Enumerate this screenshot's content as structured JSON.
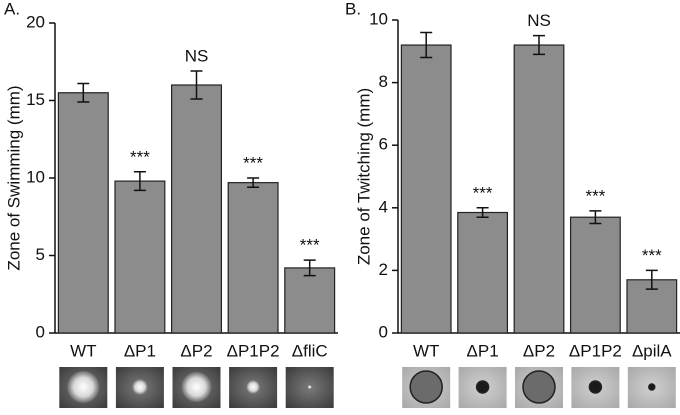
{
  "chart_data": [
    {
      "type": "bar",
      "panel_label": "A.",
      "y_label": "Zone of Swimming (mm)",
      "categories": [
        "WT",
        "ΔP1",
        "ΔP2",
        "ΔP1P2",
        "ΔfliC"
      ],
      "values": [
        15.5,
        9.8,
        16.0,
        9.7,
        4.2
      ],
      "errors": [
        0.6,
        0.6,
        0.9,
        0.3,
        0.5
      ],
      "annotations": [
        null,
        "***",
        "NS",
        "***",
        "***"
      ],
      "color": "#8c8c8c",
      "ylim": [
        0,
        20
      ],
      "yticks": [
        0,
        5,
        10,
        15,
        20
      ]
    },
    {
      "type": "bar",
      "panel_label": "B.",
      "y_label": "Zone of Twitching (mm)",
      "categories": [
        "WT",
        "ΔP1",
        "ΔP2",
        "ΔP1P2",
        "ΔpilA"
      ],
      "values": [
        9.2,
        3.85,
        9.2,
        3.7,
        1.7
      ],
      "errors": [
        0.4,
        0.15,
        0.3,
        0.2,
        0.3
      ],
      "annotations": [
        null,
        "***",
        "NS",
        "***",
        "***"
      ],
      "color": "#8c8c8c",
      "ylim": [
        0,
        10
      ],
      "yticks": [
        0,
        2,
        4,
        6,
        8,
        10
      ]
    }
  ]
}
